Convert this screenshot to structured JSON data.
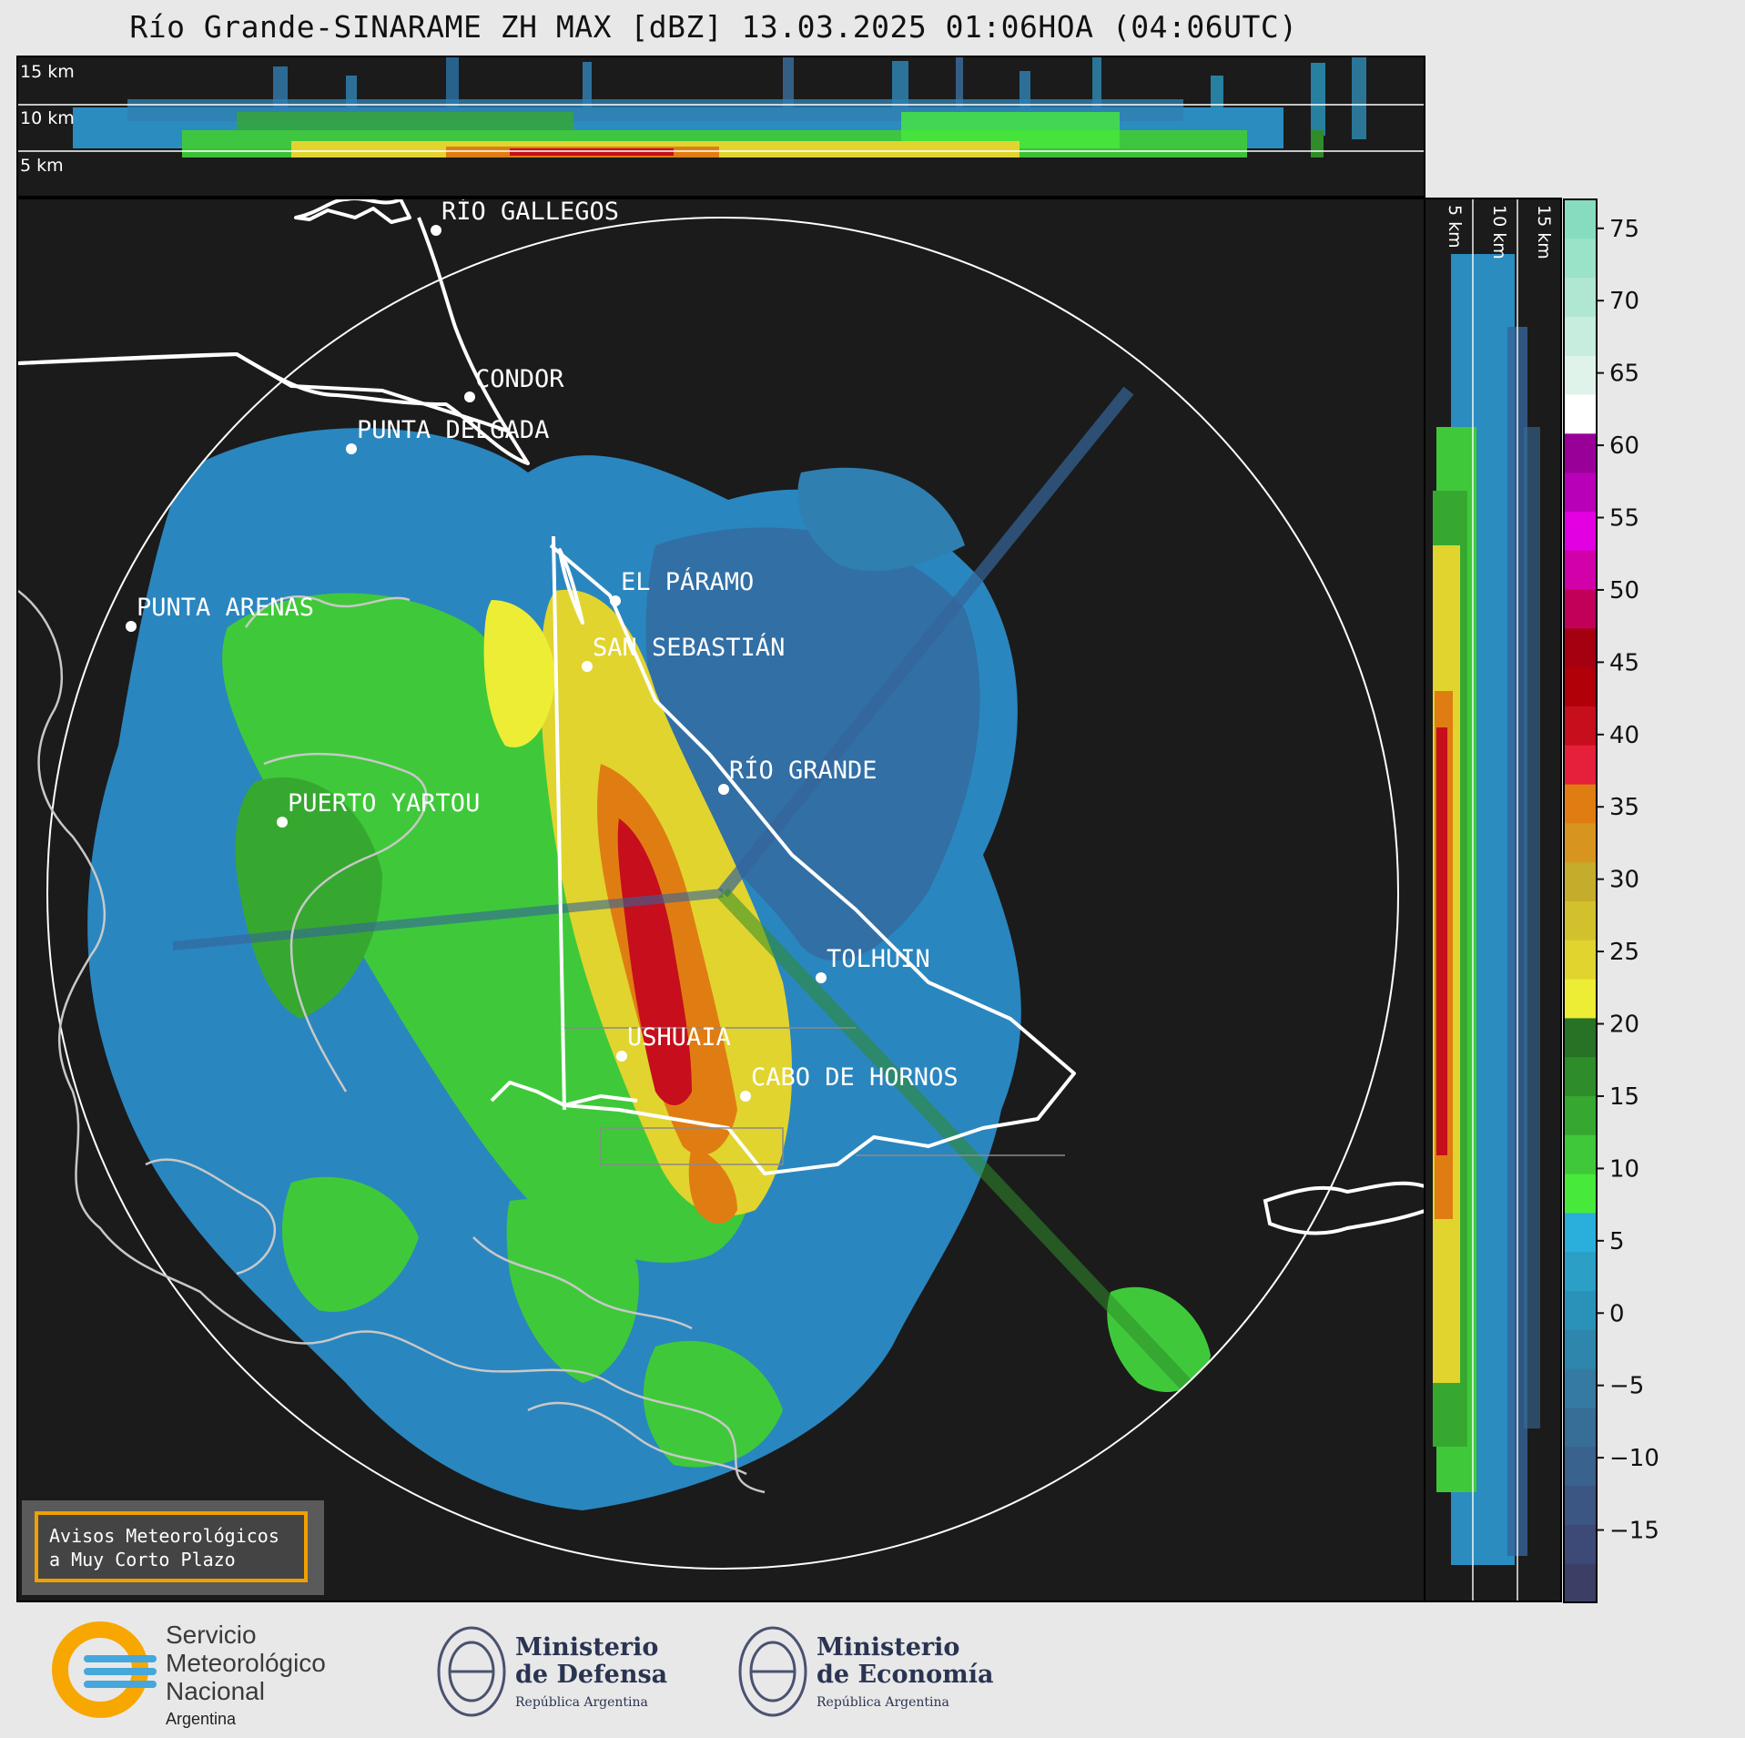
{
  "title": "Río Grande-SINARAME ZH MAX [dBZ] 13.03.2025 01:06HOA (04:06UTC)",
  "top_panel": {
    "height_labels": [
      "15 km",
      "10 km",
      "5 km"
    ]
  },
  "side_panel": {
    "height_labels": [
      "5 km",
      "10 km",
      "15 km"
    ]
  },
  "map": {
    "places": [
      "RÍO GALLEGOS",
      "CONDOR",
      "PUNTA DELGADA",
      "EL PÁRAMO",
      "SAN SEBASTIÁN",
      "PUNTA ARENAS",
      "RÍO GRANDE",
      "PUERTO YARTOU",
      "TOLHUIN",
      "USHUAIA",
      "CABO DE HORNOS"
    ]
  },
  "colorbar": {
    "unit": "dBZ",
    "ticks": [
      75,
      70,
      65,
      60,
      55,
      50,
      45,
      40,
      35,
      30,
      25,
      20,
      15,
      10,
      5,
      0,
      -5,
      -10,
      -15
    ],
    "tick_labels": [
      "75",
      "70",
      "65",
      "60",
      "55",
      "50",
      "45",
      "40",
      "35",
      "30",
      "25",
      "20",
      "15",
      "10",
      "5",
      "0",
      "−5",
      "−10",
      "−15"
    ],
    "range": [
      -20,
      77
    ],
    "colors": [
      "#3b3f66",
      "#3d4a78",
      "#3c5683",
      "#3a628e",
      "#376e98",
      "#347aa2",
      "#2e86ad",
      "#2a92b8",
      "#2b9fc6",
      "#2aaedb",
      "#47ea3a",
      "#3fc93a",
      "#36a830",
      "#2f8c2a",
      "#277325",
      "#eded35",
      "#e1d42f",
      "#d3c02d",
      "#c6ac2b",
      "#d7951f",
      "#e07d12",
      "#e6203a",
      "#c60e1c",
      "#b20008",
      "#a50010",
      "#c2005a",
      "#d200a8",
      "#e200e2",
      "#b800b8",
      "#980098",
      "#ffffff",
      "#dff3ea",
      "#c6eddd",
      "#b0e7d2",
      "#9ae2c8",
      "#86dcbe"
    ]
  },
  "aviso": {
    "line1": "Avisos Meteorológicos",
    "line2": "a Muy Corto Plazo"
  },
  "logos": {
    "smn": [
      "Servicio",
      "Meteorológico",
      "Nacional",
      "Argentina"
    ],
    "defensa": [
      "Ministerio",
      "de Defensa",
      "República Argentina"
    ],
    "economia": [
      "Ministerio",
      "de Economía",
      "República Argentina"
    ]
  }
}
